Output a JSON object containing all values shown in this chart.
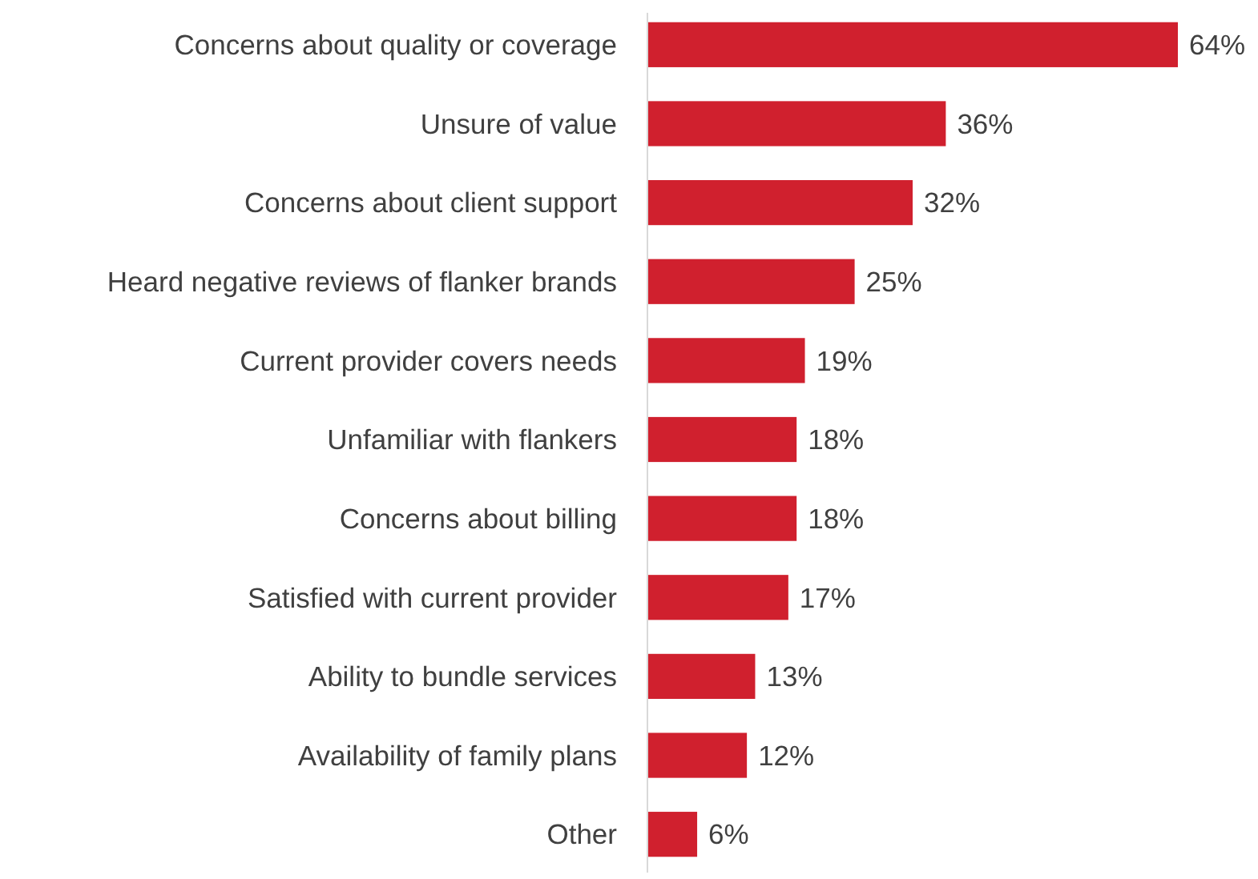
{
  "chart_data": {
    "type": "bar",
    "orientation": "horizontal",
    "categories": [
      "Concerns about quality or coverage",
      "Unsure of value",
      "Concerns about client support",
      "Heard negative reviews of flanker brands",
      "Current provider covers needs",
      "Unfamiliar with flankers",
      "Concerns about billing",
      "Satisfied with current provider",
      "Ability to bundle services",
      "Availability of family plans",
      "Other"
    ],
    "values": [
      64,
      36,
      32,
      25,
      19,
      18,
      18,
      17,
      13,
      12,
      6
    ],
    "value_labels": [
      "64%",
      "36%",
      "32%",
      "25%",
      "19%",
      "18%",
      "18%",
      "17%",
      "13%",
      "12%",
      "6%"
    ],
    "color": "#d0202e"
  }
}
